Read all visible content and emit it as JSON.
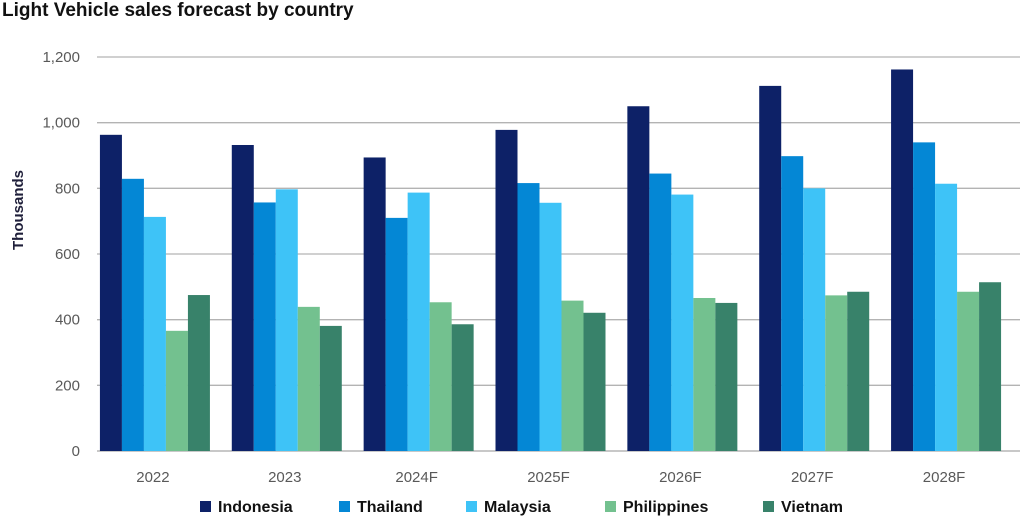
{
  "chart_data": {
    "type": "bar",
    "title": "Light Vehicle sales forecast by country",
    "xlabel": "",
    "ylabel": "Thousands",
    "ylim": [
      0,
      1200
    ],
    "yticks": [
      0,
      200,
      400,
      600,
      800,
      1000,
      1200
    ],
    "ytick_labels": [
      "0",
      "200",
      "400",
      "600",
      "800",
      "1,000",
      "1,200"
    ],
    "grid": true,
    "legend_position": "bottom",
    "categories": [
      "2022",
      "2023",
      "2024F",
      "2025F",
      "2026F",
      "2027F",
      "2028F"
    ],
    "series": [
      {
        "name": "Indonesia",
        "color": "#0d2167",
        "values": [
          963,
          932,
          894,
          978,
          1050,
          1112,
          1162
        ]
      },
      {
        "name": "Thailand",
        "color": "#0487d5",
        "values": [
          829,
          757,
          710,
          816,
          845,
          898,
          940
        ]
      },
      {
        "name": "Malaysia",
        "color": "#3ec3f7",
        "values": [
          713,
          797,
          787,
          756,
          781,
          800,
          814
        ]
      },
      {
        "name": "Philippines",
        "color": "#73c18f",
        "values": [
          366,
          439,
          453,
          458,
          466,
          474,
          485
        ]
      },
      {
        "name": "Vietnam",
        "color": "#38826a",
        "values": [
          475,
          381,
          386,
          421,
          451,
          485,
          514
        ]
      }
    ]
  }
}
